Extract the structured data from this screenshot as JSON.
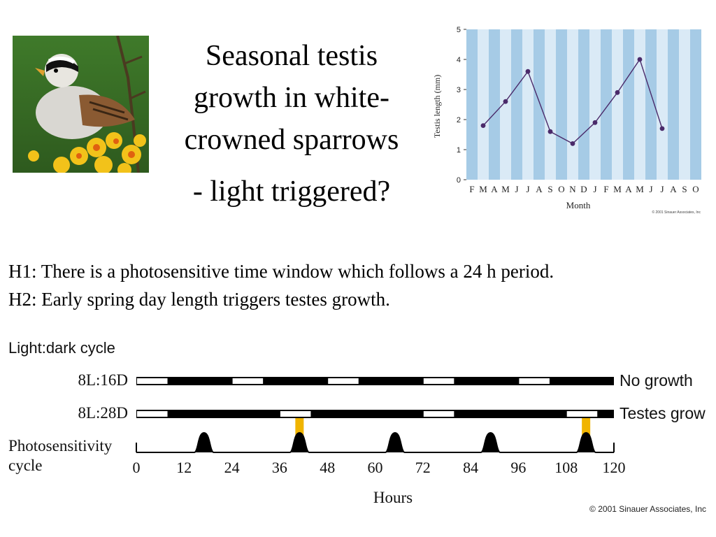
{
  "slide": {
    "title_lines": [
      "Seasonal testis",
      "growth in white-",
      "crowned sparrows",
      "- light triggered?"
    ],
    "hypotheses": [
      "H1: There is a photosensitive time window which follows a 24 h period.",
      "H2: Early spring day length triggers testes growth."
    ],
    "colors": {
      "text": "#000000",
      "stripe_dark": "#a6cbe6",
      "stripe_light": "#daeaf6",
      "line": "#4a2a6a",
      "gate": "#f0b400"
    }
  },
  "photo": {
    "icon": "white-crowned-sparrow-photo"
  },
  "chart_data": [
    {
      "type": "line",
      "title": "",
      "xlabel": "Month",
      "ylabel": "Testis length (mm)",
      "ylim": [
        0,
        5
      ],
      "yticks": [
        0,
        1,
        2,
        3,
        4,
        5
      ],
      "categories": [
        "F",
        "M",
        "A",
        "M",
        "J",
        "J",
        "A",
        "S",
        "O",
        "N",
        "D",
        "J",
        "F",
        "M",
        "A",
        "M",
        "J",
        "J",
        "A",
        "S",
        "O"
      ],
      "points": [
        {
          "x": 1,
          "y": 1.8
        },
        {
          "x": 3,
          "y": 2.6
        },
        {
          "x": 5,
          "y": 3.6
        },
        {
          "x": 7,
          "y": 1.6
        },
        {
          "x": 9,
          "y": 1.2
        },
        {
          "x": 11,
          "y": 1.9
        },
        {
          "x": 13,
          "y": 2.9
        },
        {
          "x": 15,
          "y": 4.0
        },
        {
          "x": 17,
          "y": 1.7
        }
      ],
      "grid": "alternating vertical stripes",
      "copyright": "© 2001 Sinauer Associates, Inc"
    },
    {
      "type": "timeline",
      "title": "Light:dark cycle",
      "xlabel": "Hours",
      "xlim": [
        0,
        120
      ],
      "xticks": [
        0,
        12,
        24,
        36,
        48,
        60,
        72,
        84,
        96,
        108,
        120
      ],
      "rows": [
        {
          "label": "8L:16D",
          "outcome": "No growth",
          "light_periods": [
            [
              0,
              8
            ],
            [
              24,
              32
            ],
            [
              48,
              56
            ],
            [
              72,
              80
            ],
            [
              96,
              104
            ]
          ]
        },
        {
          "label": "8L:28D",
          "outcome": "Testes grow",
          "light_periods": [
            [
              0,
              8
            ],
            [
              36,
              44
            ],
            [
              72,
              80
            ],
            [
              108,
              116
            ]
          ]
        }
      ],
      "photosensitivity": {
        "label_lines": [
          "Photosensitivity",
          "cycle"
        ],
        "peaks": [
          17,
          41,
          65,
          89,
          113
        ],
        "coincidence": [
          41,
          113
        ]
      },
      "copyright": "© 2001 Sinauer Associates, Inc"
    }
  ]
}
